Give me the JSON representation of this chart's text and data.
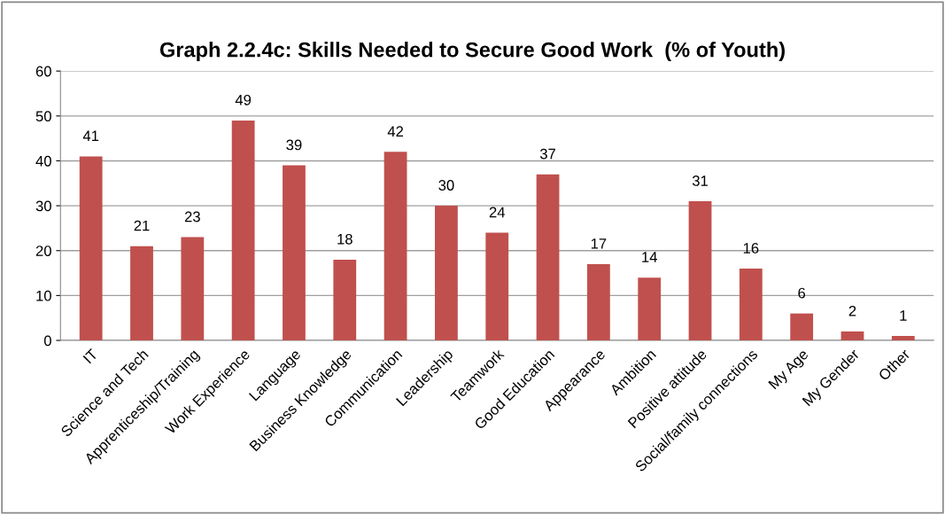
{
  "chart_data": {
    "type": "bar",
    "title": "Graph 2.2.4c: Skills Needed to Secure Good Work  (% of Youth)",
    "categories": [
      "IT",
      "Science and Tech",
      "Apprenticeship/Training",
      "Work Experience",
      "Language",
      "Business Knowledge",
      "Communication",
      "Leadership",
      "Teamwork",
      "Good Education",
      "Appearance",
      "Ambition",
      "Positive attitude",
      "Social/family connections",
      "My Age",
      "My Gender",
      "Other"
    ],
    "values": [
      41,
      21,
      23,
      49,
      39,
      18,
      42,
      30,
      24,
      37,
      17,
      14,
      31,
      16,
      6,
      2,
      1
    ],
    "color": "#c0504d",
    "ylim": [
      0,
      60
    ],
    "yticks": [
      0,
      10,
      20,
      30,
      40,
      50,
      60
    ],
    "grid": "y",
    "data_labels": true,
    "legend": false
  }
}
